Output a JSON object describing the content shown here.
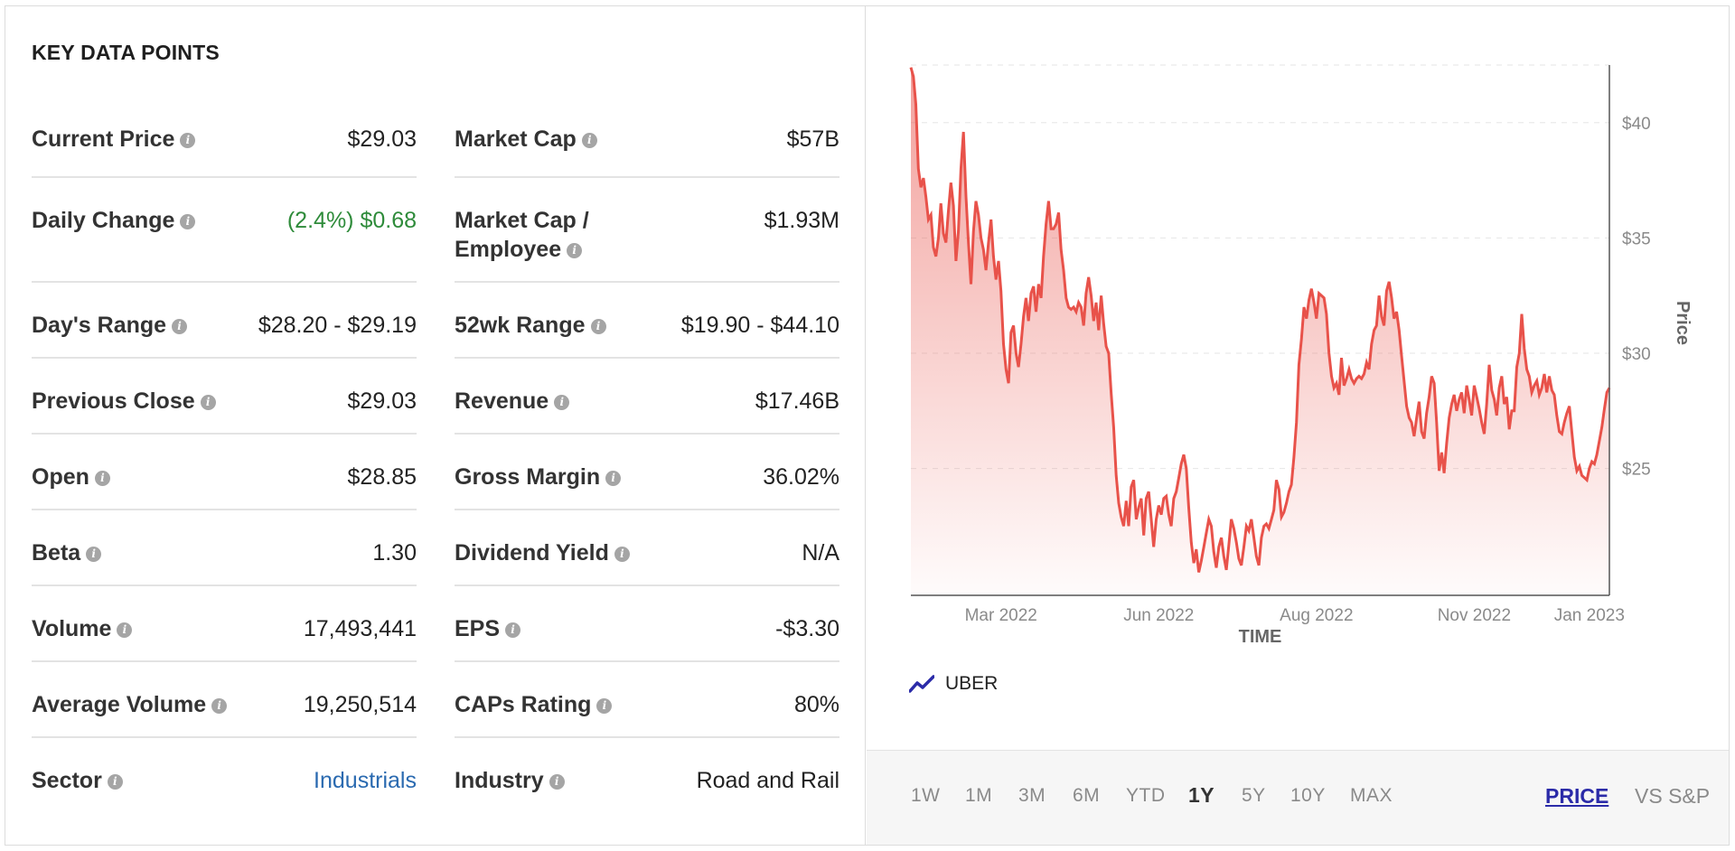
{
  "section_title": "KEY DATA POINTS",
  "info_glyph": "i",
  "left_column": [
    {
      "label": "Current Price",
      "value": "$29.03"
    },
    {
      "label": "Daily Change",
      "value": "(2.4%) $0.68"
    },
    {
      "label": "Day's Range",
      "value": "$28.20 - $29.19"
    },
    {
      "label": "Previous Close",
      "value": "$29.03"
    },
    {
      "label": "Open",
      "value": "$28.85"
    },
    {
      "label": "Beta",
      "value": "1.30"
    },
    {
      "label": "Volume",
      "value": "17,493,441"
    },
    {
      "label": "Average Volume",
      "value": "19,250,514"
    },
    {
      "label": "Sector",
      "value": "Industrials"
    }
  ],
  "right_column": [
    {
      "label": "Market Cap",
      "value": "$57B"
    },
    {
      "label": "Market Cap /",
      "label2": "Employee",
      "value": "$1.93M"
    },
    {
      "label": "52wk Range",
      "value": "$19.90 - $44.10"
    },
    {
      "label": "Revenue",
      "value": "$17.46B"
    },
    {
      "label": "Gross Margin",
      "value": "36.02%"
    },
    {
      "label": "Dividend Yield",
      "value": "N/A"
    },
    {
      "label": "EPS",
      "value": "-$3.30"
    },
    {
      "label": "CAPs Rating",
      "value": "80%"
    },
    {
      "label": "Industry",
      "value": "Road and Rail"
    }
  ],
  "colors": {
    "positive": "#2e8b3a",
    "link": "#2a6ab0",
    "series": "#e8524a",
    "legend_icon": "#2b2ba8",
    "active_mode": "#2b2ba8"
  },
  "legend": {
    "icon": "trend-line-icon",
    "label": "UBER"
  },
  "range_buttons": [
    "1W",
    "1M",
    "3M",
    "6M",
    "YTD",
    "1Y",
    "5Y",
    "10Y",
    "MAX"
  ],
  "active_range": "1Y",
  "mode_buttons": {
    "price": "PRICE",
    "vs_sp": "VS S&P"
  },
  "chart_data": {
    "type": "area",
    "xlabel": "TIME",
    "ylabel": "Price",
    "ylim": [
      19.5,
      42.5
    ],
    "y_ticks": [
      25,
      30,
      35,
      40
    ],
    "y_tick_labels": [
      "$25",
      "$30",
      "$35",
      "$40"
    ],
    "x_tick_labels": [
      "Mar 2022",
      "Jun 2022",
      "Aug 2022",
      "Nov 2022",
      "Jan 2023"
    ],
    "x_tick_index": [
      36,
      99,
      162,
      225,
      271
    ],
    "grid": true,
    "series": [
      {
        "name": "UBER",
        "values": [
          42.4,
          42.0,
          40.8,
          38.0,
          37.2,
          37.6,
          36.8,
          35.8,
          36.0,
          34.6,
          34.2,
          35.0,
          36.5,
          35.2,
          34.8,
          36.2,
          37.4,
          36.4,
          34.0,
          35.3,
          38.0,
          39.6,
          36.8,
          34.8,
          33.0,
          35.3,
          36.6,
          36.0,
          35.0,
          34.5,
          33.6,
          34.8,
          35.8,
          34.2,
          33.2,
          34.0,
          32.7,
          30.4,
          29.3,
          28.7,
          30.9,
          31.2,
          30.0,
          29.4,
          30.4,
          31.6,
          32.4,
          31.4,
          32.6,
          32.9,
          31.8,
          33.0,
          32.4,
          34.2,
          35.6,
          36.6,
          35.4,
          35.4,
          35.6,
          36.1,
          34.5,
          33.6,
          32.4,
          32.0,
          31.9,
          32.0,
          31.8,
          32.2,
          32.0,
          31.2,
          32.6,
          33.3,
          32.5,
          31.4,
          32.2,
          31.0,
          32.5,
          31.3,
          30.3,
          30.0,
          28.3,
          26.8,
          24.7,
          23.5,
          22.9,
          22.5,
          23.6,
          22.5,
          24.2,
          24.5,
          22.8,
          23.3,
          23.7,
          22.1,
          23.7,
          24.0,
          22.8,
          21.6,
          22.8,
          23.4,
          23.0,
          23.7,
          23.8,
          23.0,
          22.5,
          23.7,
          24.0,
          24.6,
          25.2,
          25.6,
          25.0,
          23.3,
          21.8,
          20.9,
          21.5,
          20.5,
          21.0,
          21.6,
          22.2,
          22.8,
          22.5,
          21.4,
          20.7,
          21.6,
          22.0,
          21.2,
          20.6,
          21.7,
          22.8,
          22.4,
          21.8,
          21.1,
          20.8,
          21.6,
          22.5,
          22.3,
          22.8,
          22.0,
          21.2,
          20.8,
          22.0,
          22.5,
          22.6,
          22.4,
          22.8,
          23.2,
          24.5,
          24.1,
          22.9,
          23.1,
          23.5,
          24.0,
          24.3,
          25.5,
          27.0,
          29.5,
          30.6,
          32.0,
          31.5,
          32.3,
          32.8,
          32.2,
          31.5,
          32.6,
          32.5,
          32.4,
          31.7,
          30.0,
          29.0,
          28.5,
          28.7,
          28.2,
          29.8,
          28.6,
          28.9,
          29.3,
          28.9,
          28.7,
          28.9,
          29.0,
          28.9,
          29.1,
          29.6,
          29.3,
          30.4,
          31.0,
          31.2,
          32.5,
          31.6,
          31.2,
          32.7,
          33.1,
          32.4,
          31.5,
          31.8,
          31.0,
          29.9,
          28.8,
          27.7,
          27.2,
          27.0,
          26.4,
          27.2,
          27.9,
          26.6,
          26.3,
          27.4,
          28.1,
          29.0,
          28.7,
          27.0,
          24.9,
          25.7,
          24.8,
          26.1,
          27.2,
          27.8,
          28.2,
          27.5,
          28.0,
          28.3,
          27.4,
          28.6,
          28.0,
          27.3,
          28.6,
          28.1,
          27.6,
          27.0,
          26.5,
          27.8,
          29.5,
          28.4,
          28.0,
          27.3,
          28.5,
          29.0,
          27.8,
          28.1,
          26.7,
          27.5,
          27.5,
          29.4,
          30.0,
          31.7,
          30.2,
          29.3,
          29.0,
          28.3,
          28.6,
          28.8,
          28.2,
          28.5,
          29.1,
          28.3,
          29.0,
          28.4,
          28.2,
          27.3,
          26.6,
          26.5,
          27.0,
          27.4,
          27.7,
          26.6,
          25.5,
          24.9,
          25.1,
          24.7,
          24.6,
          24.5,
          25.0,
          25.3,
          25.2,
          25.6,
          26.2,
          26.8,
          27.6,
          28.3,
          28.5
        ]
      }
    ]
  }
}
